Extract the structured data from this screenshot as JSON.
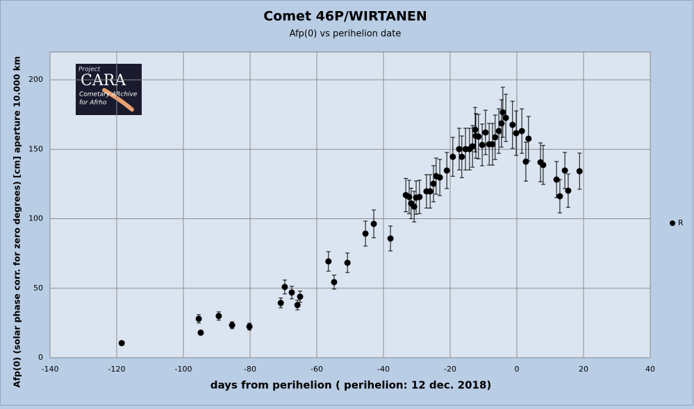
{
  "chart_data": {
    "type": "scatter",
    "title": "Comet 46P/WIRTANEN",
    "subtitle": "Afp(0) vs perihelion date",
    "x_label": "days from perihelion ( perihelion: 12 dec. 2018)",
    "y_label": "Afp(0) (solar phase corr. for zero degrees) [cm] aperture 10.000 km",
    "xlim": [
      -140,
      40
    ],
    "xticks": [
      -140,
      -120,
      -100,
      -80,
      -60,
      -40,
      -20,
      0,
      20,
      40
    ],
    "ylim": [
      0,
      220
    ],
    "yticks": [
      0,
      50,
      100,
      150,
      200
    ],
    "grid": true,
    "legend": "right",
    "logo": {
      "project": "Project",
      "name": "CARA",
      "line1": "Cometary ARchive",
      "line2": "for Afrho"
    },
    "series": [
      {
        "name": "R",
        "color": "#000000",
        "x": [
          -118.5,
          -95.4,
          -94.8,
          -89.4,
          -85.4,
          -80.2,
          -70.8,
          -69.6,
          -67.5,
          -65.8,
          -65,
          -56.5,
          -54.8,
          -50.8,
          -45.4,
          -42.9,
          -37.9,
          -33.3,
          -32.3,
          -31.7,
          -30.8,
          -30.2,
          -29.2,
          -27.1,
          -26,
          -25,
          -24.2,
          -23.1,
          -21,
          -19.2,
          -17.3,
          -16.5,
          -15.4,
          -14.2,
          -13.3,
          -12.5,
          -12.3,
          -11.5,
          -10.4,
          -9.4,
          -8.3,
          -7.3,
          -6.5,
          -5.4,
          -4.6,
          -4.2,
          -3.3,
          -1.3,
          -0.2,
          1.5,
          2.7,
          3.5,
          7.1,
          7.9,
          11.9,
          12.9,
          14.4,
          15.4,
          18.8
        ],
        "values": [
          10.5,
          28,
          18,
          30,
          23.4,
          22.4,
          39.4,
          50.9,
          46.9,
          37.9,
          43.9,
          69.3,
          54.4,
          68.3,
          89.3,
          96.3,
          85.8,
          117,
          115.7,
          111,
          108.7,
          115.2,
          115.7,
          119.7,
          119.7,
          125.2,
          130.7,
          129.7,
          134.7,
          144.6,
          150.1,
          144.6,
          150.1,
          150.1,
          152.1,
          164.1,
          159.6,
          159.1,
          153.1,
          162.1,
          153.6,
          153.6,
          158.6,
          163.1,
          168.6,
          176.6,
          172.6,
          167.6,
          161.6,
          163.1,
          141.1,
          157.6,
          140.6,
          138.7,
          128.2,
          116.2,
          134.7,
          120.2,
          134.2
        ],
        "errors": [
          1,
          3,
          1.5,
          3,
          2.5,
          2.5,
          3.5,
          5,
          4.5,
          3.5,
          4,
          7,
          5,
          7,
          9,
          10,
          9,
          12,
          12,
          11,
          11,
          12,
          12,
          12,
          12,
          13,
          13,
          13,
          13,
          14,
          15,
          15,
          15,
          15,
          15,
          16,
          16,
          16,
          15,
          16,
          15,
          15,
          16,
          16,
          17,
          18,
          17,
          17,
          16,
          16,
          14,
          16,
          14,
          14,
          13,
          12,
          13,
          12,
          13
        ]
      }
    ]
  }
}
